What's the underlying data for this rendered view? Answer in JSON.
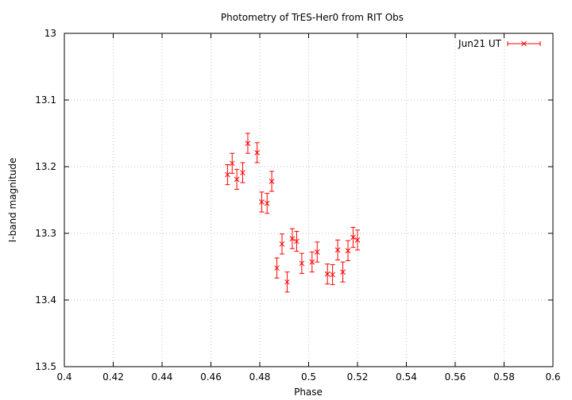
{
  "chart_data": {
    "type": "scatter",
    "title": "Photometry of TrES-Her0 from RIT Obs",
    "xlabel": "Phase",
    "ylabel": "I-band magnitude",
    "xlim": [
      0.4,
      0.6
    ],
    "ylim": [
      13.5,
      13.0
    ],
    "y_inverted": true,
    "x_ticks": [
      "0.4",
      "0.42",
      "0.44",
      "0.46",
      "0.48",
      "0.5",
      "0.52",
      "0.54",
      "0.56",
      "0.58",
      "0.6"
    ],
    "y_ticks": [
      "13",
      "13.1",
      "13.2",
      "13.3",
      "13.4",
      "13.5"
    ],
    "grid": true,
    "legend_position": "top-right",
    "series": [
      {
        "name": "Jun21 UT",
        "color": "#ff0000",
        "marker": "x",
        "error_bars": true,
        "points": [
          {
            "x": 0.4668,
            "y": 13.212,
            "err": 0.015
          },
          {
            "x": 0.4687,
            "y": 13.195,
            "err": 0.015
          },
          {
            "x": 0.4706,
            "y": 13.219,
            "err": 0.015
          },
          {
            "x": 0.473,
            "y": 13.209,
            "err": 0.015
          },
          {
            "x": 0.4751,
            "y": 13.165,
            "err": 0.015
          },
          {
            "x": 0.4789,
            "y": 13.179,
            "err": 0.015
          },
          {
            "x": 0.4808,
            "y": 13.253,
            "err": 0.015
          },
          {
            "x": 0.483,
            "y": 13.255,
            "err": 0.015
          },
          {
            "x": 0.4849,
            "y": 13.222,
            "err": 0.015
          },
          {
            "x": 0.487,
            "y": 13.352,
            "err": 0.015
          },
          {
            "x": 0.4891,
            "y": 13.316,
            "err": 0.015
          },
          {
            "x": 0.4912,
            "y": 13.373,
            "err": 0.015
          },
          {
            "x": 0.4933,
            "y": 13.308,
            "err": 0.015
          },
          {
            "x": 0.4951,
            "y": 13.312,
            "err": 0.015
          },
          {
            "x": 0.4972,
            "y": 13.345,
            "err": 0.015
          },
          {
            "x": 0.5014,
            "y": 13.343,
            "err": 0.015
          },
          {
            "x": 0.5035,
            "y": 13.328,
            "err": 0.015
          },
          {
            "x": 0.5077,
            "y": 13.361,
            "err": 0.015
          },
          {
            "x": 0.5098,
            "y": 13.362,
            "err": 0.015
          },
          {
            "x": 0.5119,
            "y": 13.325,
            "err": 0.015
          },
          {
            "x": 0.514,
            "y": 13.358,
            "err": 0.015
          },
          {
            "x": 0.5161,
            "y": 13.326,
            "err": 0.015
          },
          {
            "x": 0.5182,
            "y": 13.306,
            "err": 0.015
          },
          {
            "x": 0.52,
            "y": 13.31,
            "err": 0.015
          }
        ]
      }
    ]
  }
}
